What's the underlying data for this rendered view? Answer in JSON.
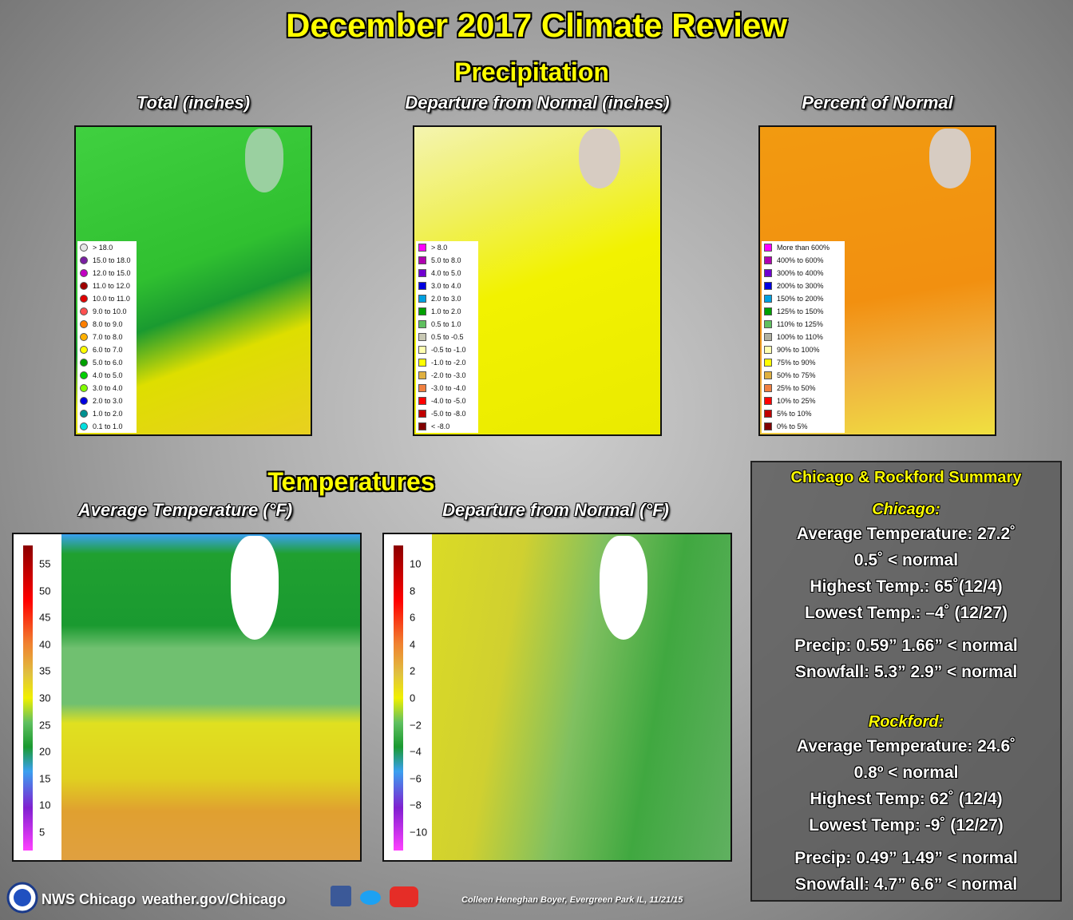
{
  "title": "December 2017 Climate Review",
  "precipitation": {
    "heading": "Precipitation",
    "panels": [
      {
        "title": "Total (inches)",
        "legend": [
          {
            "label": "> 18.0",
            "color": "#e6e6e6"
          },
          {
            "label": "15.0 to 18.0",
            "color": "#7a1fa2"
          },
          {
            "label": "12.0 to 15.0",
            "color": "#c200c2"
          },
          {
            "label": "11.0 to 12.0",
            "color": "#a00000"
          },
          {
            "label": "10.0 to 11.0",
            "color": "#e00000"
          },
          {
            "label": "9.0 to 10.0",
            "color": "#ff5050"
          },
          {
            "label": "8.0 to 9.0",
            "color": "#ff7f00"
          },
          {
            "label": "7.0 to 8.0",
            "color": "#ffb000"
          },
          {
            "label": "6.0 to 7.0",
            "color": "#ffff00"
          },
          {
            "label": "5.0 to 6.0",
            "color": "#00a000"
          },
          {
            "label": "4.0 to 5.0",
            "color": "#00d000"
          },
          {
            "label": "3.0 to 4.0",
            "color": "#80ff00"
          },
          {
            "label": "2.0 to 3.0",
            "color": "#0000e0"
          },
          {
            "label": "1.0 to 2.0",
            "color": "#009090"
          },
          {
            "label": "0.1 to 1.0",
            "color": "#00e0e0"
          }
        ]
      },
      {
        "title": "Departure from Normal (inches)",
        "legend": [
          {
            "label": "> 8.0",
            "color": "#ff00ff"
          },
          {
            "label": "5.0 to 8.0",
            "color": "#b000b0"
          },
          {
            "label": "4.0 to 5.0",
            "color": "#7000d0"
          },
          {
            "label": "3.0 to 4.0",
            "color": "#0000e0"
          },
          {
            "label": "2.0 to 3.0",
            "color": "#00a0e0"
          },
          {
            "label": "1.0 to 2.0",
            "color": "#00a000"
          },
          {
            "label": "0.5 to 1.0",
            "color": "#60c060"
          },
          {
            "label": "0.5 to -0.5",
            "color": "#c8c8b4"
          },
          {
            "label": "-0.5 to -1.0",
            "color": "#ffffb0"
          },
          {
            "label": "-1.0 to -2.0",
            "color": "#ffff00"
          },
          {
            "label": "-2.0 to -3.0",
            "color": "#e0b040"
          },
          {
            "label": "-3.0 to -4.0",
            "color": "#f08040"
          },
          {
            "label": "-4.0 to -5.0",
            "color": "#ff0000"
          },
          {
            "label": "-5.0 to -8.0",
            "color": "#c00000"
          },
          {
            "label": "< -8.0",
            "color": "#800000"
          }
        ]
      },
      {
        "title": "Percent of Normal",
        "legend": [
          {
            "label": "More than 600%",
            "color": "#ff00ff"
          },
          {
            "label": "400% to 600%",
            "color": "#b000b0"
          },
          {
            "label": "300% to 400%",
            "color": "#7000d0"
          },
          {
            "label": "200% to 300%",
            "color": "#0000e0"
          },
          {
            "label": "150% to 200%",
            "color": "#00a0e0"
          },
          {
            "label": "125% to 150%",
            "color": "#00a000"
          },
          {
            "label": "110% to 125%",
            "color": "#60c060"
          },
          {
            "label": "100% to 110%",
            "color": "#b0b0a0"
          },
          {
            "label": "90% to 100%",
            "color": "#ffffb0"
          },
          {
            "label": "75% to 90%",
            "color": "#ffff00"
          },
          {
            "label": "50% to 75%",
            "color": "#e0b040"
          },
          {
            "label": "25% to 50%",
            "color": "#f08040"
          },
          {
            "label": "10% to 25%",
            "color": "#ff0000"
          },
          {
            "label": "5% to 10%",
            "color": "#c00000"
          },
          {
            "label": "0% to 5%",
            "color": "#800000"
          }
        ]
      }
    ]
  },
  "temperatures": {
    "heading": "Temperatures",
    "panels": [
      {
        "title": "Average Temperature (°F)",
        "colorbar": [
          "55",
          "50",
          "45",
          "40",
          "35",
          "30",
          "25",
          "20",
          "15",
          "10",
          "5"
        ]
      },
      {
        "title": "Departure from Normal (°F)",
        "colorbar": [
          "10",
          "8",
          "6",
          "4",
          "2",
          "0",
          "−2",
          "−4",
          "−6",
          "−8",
          "−10"
        ]
      }
    ]
  },
  "summary": {
    "title": "Chicago & Rockford Summary",
    "stations": [
      {
        "name": "Chicago:",
        "lines": [
          "Average Temperature: 27.2˚",
          "0.5˚ < normal",
          "Highest Temp.: 65˚(12/4)",
          "Lowest Temp.: –4˚ (12/27)",
          "Precip: 0.59”  1.66” < normal",
          "Snowfall: 5.3”  2.9” < normal"
        ]
      },
      {
        "name": "Rockford:",
        "lines": [
          "Average Temperature: 24.6˚",
          "0.8º < normal",
          "Highest Temp: 62˚ (12/4)",
          "Lowest Temp: -9˚ (12/27)",
          "Precip: 0.49”  1.49” < normal",
          "Snowfall: 4.7”  6.6” < normal"
        ]
      }
    ]
  },
  "footer": {
    "office": "NWS Chicago",
    "url": "weather.gov/Chicago",
    "credit": "Colleen Heneghan Boyer, Evergreen Park IL, 11/21/15"
  }
}
